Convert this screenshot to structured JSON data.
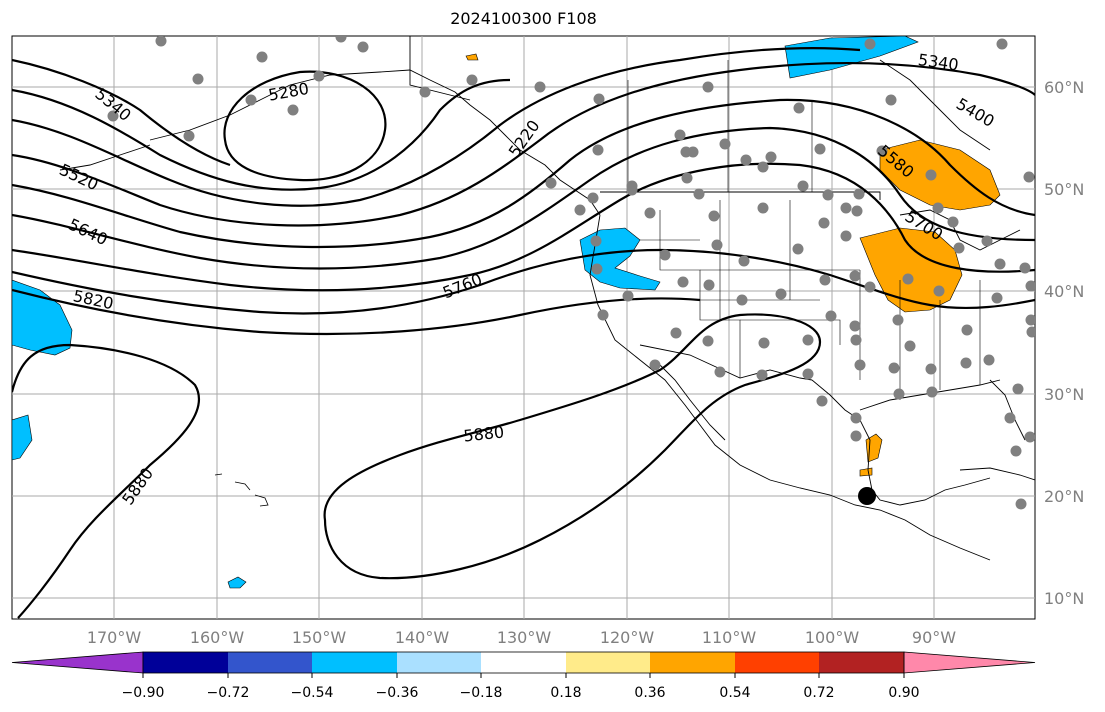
{
  "title": "2024100300 F108",
  "lon_labels": [
    "170°W",
    "160°W",
    "150°W",
    "140°W",
    "130°W",
    "120°W",
    "110°W",
    "100°W",
    "90°W"
  ],
  "lat_labels": [
    "60°N",
    "50°N",
    "40°N",
    "30°N",
    "20°N",
    "10°N"
  ],
  "colorbar": {
    "colors": [
      "#9933cc",
      "#000099",
      "#3355cc",
      "#00bfff",
      "#aae0ff",
      "#ffffff",
      "#ffeb8a",
      "#ffa500",
      "#ff4000",
      "#b22222",
      "#ff88aa"
    ],
    "tick_labels": [
      "−0.90",
      "−0.72",
      "−0.54",
      "−0.36",
      "−0.18",
      "0.18",
      "0.36",
      "0.54",
      "0.72",
      "0.90"
    ]
  },
  "contour_labels": [
    "5340",
    "5280",
    "5220",
    "5520",
    "5640",
    "5820",
    "5760",
    "5880",
    "5880",
    "5340",
    "5400",
    "5580",
    "5700"
  ],
  "colors": {
    "contour": "#000000",
    "grid": "#aaaaaa",
    "station": "#808080",
    "positive_anomaly": "#ffa500",
    "negative_anomaly": "#00bfff",
    "marker": "#000000"
  }
}
